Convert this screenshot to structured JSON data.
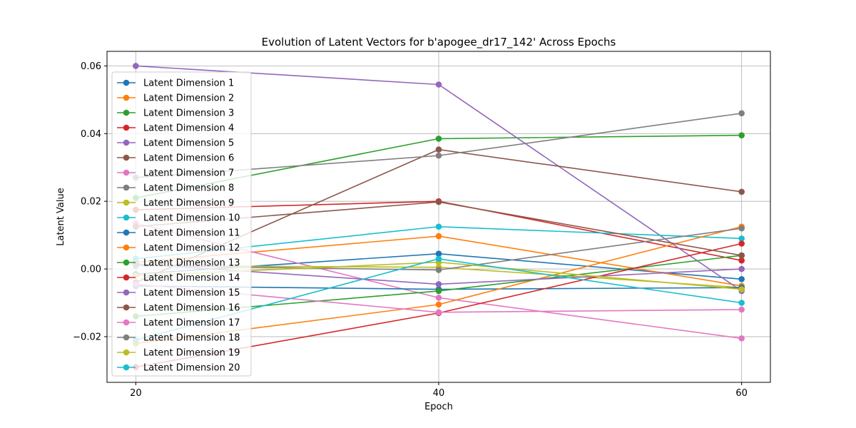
{
  "chart_data": {
    "type": "line",
    "title": "Evolution of Latent Vectors for b'apogee_dr17_142' Across Epochs",
    "xlabel": "Epoch",
    "ylabel": "Latent Value",
    "x": [
      20,
      40,
      60
    ],
    "x_ticks": [
      "20",
      "40",
      "60"
    ],
    "y_ticks": [
      "−0.02",
      "0.00",
      "0.02",
      "0.04",
      "0.06"
    ],
    "y_tick_values": [
      -0.02,
      0.0,
      0.02,
      0.04,
      0.06
    ],
    "xlim": [
      18.1,
      61.9
    ],
    "ylim": [
      -0.0335,
      0.0643
    ],
    "grid": true,
    "legend_position": "upper-left",
    "series": [
      {
        "name": "Latent Dimension 1",
        "color": "#1f77b4",
        "values": [
          -0.0015,
          0.0045,
          -0.003
        ]
      },
      {
        "name": "Latent Dimension 2",
        "color": "#ff7f0e",
        "values": [
          0.002,
          0.0097,
          -0.005
        ]
      },
      {
        "name": "Latent Dimension 3",
        "color": "#2ca02c",
        "values": [
          0.021,
          0.0385,
          0.0395
        ]
      },
      {
        "name": "Latent Dimension 4",
        "color": "#d62728",
        "values": [
          0.0175,
          0.02,
          0.0025
        ]
      },
      {
        "name": "Latent Dimension 5",
        "color": "#9467bd",
        "values": [
          0.06,
          0.0545,
          -0.0065
        ]
      },
      {
        "name": "Latent Dimension 6",
        "color": "#8c564b",
        "values": [
          -0.004,
          0.0353,
          0.0228
        ]
      },
      {
        "name": "Latent Dimension 7",
        "color": "#e377c2",
        "values": [
          0.0135,
          -0.0085,
          -0.0205
        ]
      },
      {
        "name": "Latent Dimension 8",
        "color": "#7f7f7f",
        "values": [
          0.027,
          0.0335,
          0.046
        ]
      },
      {
        "name": "Latent Dimension 9",
        "color": "#bcbd22",
        "values": [
          0.001,
          0.0005,
          -0.0055
        ]
      },
      {
        "name": "Latent Dimension 10",
        "color": "#17becf",
        "values": [
          0.003,
          0.0125,
          0.009
        ]
      },
      {
        "name": "Latent Dimension 11",
        "color": "#1f77b4",
        "values": [
          -0.005,
          -0.006,
          -0.0055
        ]
      },
      {
        "name": "Latent Dimension 12",
        "color": "#ff7f0e",
        "values": [
          -0.022,
          -0.0105,
          0.0125
        ]
      },
      {
        "name": "Latent Dimension 13",
        "color": "#2ca02c",
        "values": [
          -0.014,
          -0.0065,
          0.004
        ]
      },
      {
        "name": "Latent Dimension 14",
        "color": "#d62728",
        "values": [
          -0.029,
          -0.013,
          0.0075
        ]
      },
      {
        "name": "Latent Dimension 15",
        "color": "#9467bd",
        "values": [
          0.0015,
          -0.0045,
          0.0
        ]
      },
      {
        "name": "Latent Dimension 16",
        "color": "#8c564b",
        "values": [
          0.0125,
          0.0198,
          0.004
        ]
      },
      {
        "name": "Latent Dimension 17",
        "color": "#e377c2",
        "values": [
          -0.0045,
          -0.0128,
          -0.012
        ]
      },
      {
        "name": "Latent Dimension 18",
        "color": "#7f7f7f",
        "values": [
          0.001,
          -0.0003,
          0.012
        ]
      },
      {
        "name": "Latent Dimension 19",
        "color": "#bcbd22",
        "values": [
          -0.002,
          0.002,
          -0.006
        ]
      },
      {
        "name": "Latent Dimension 20",
        "color": "#17becf",
        "values": [
          -0.021,
          0.003,
          -0.01
        ]
      }
    ]
  }
}
